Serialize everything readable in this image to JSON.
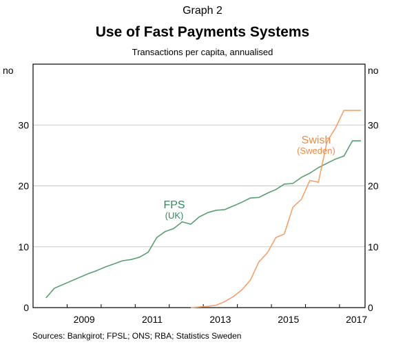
{
  "header": {
    "supertitle": "Graph 2",
    "title": "Use of Fast Payments Systems",
    "subtitle": "Transactions per capita, annualised"
  },
  "footer": {
    "source": "Sources:  Bankgirot; FPSL; ONS; RBA; Statistics Sweden"
  },
  "chart_data": {
    "type": "line",
    "title": "Use of Fast Payments Systems",
    "subtitle": "Transactions per capita, annualised",
    "ylabel_left": "no",
    "ylabel_right": "no",
    "xlim": [
      2008,
      2017.75
    ],
    "ylim": [
      0,
      40
    ],
    "yticks": [
      0,
      10,
      20,
      30
    ],
    "xticks": [
      "2009",
      "2011",
      "2013",
      "2015",
      "2017"
    ],
    "grid": "horizontal",
    "series": [
      {
        "name": "FPS",
        "sublabel": "(UK)",
        "color": "#5a9e6f",
        "label_color": "#2e8b57",
        "x": [
          2008.38,
          2008.63,
          2008.88,
          2009.13,
          2009.38,
          2009.63,
          2009.88,
          2010.13,
          2010.38,
          2010.63,
          2010.88,
          2011.13,
          2011.38,
          2011.63,
          2011.88,
          2012.13,
          2012.38,
          2012.63,
          2012.88,
          2013.13,
          2013.38,
          2013.63,
          2013.88,
          2014.13,
          2014.38,
          2014.63,
          2014.88,
          2015.13,
          2015.38,
          2015.63,
          2015.88,
          2016.13,
          2016.38,
          2016.63,
          2016.88,
          2017.13,
          2017.38,
          2017.63
        ],
        "y": [
          1.6,
          3.2,
          3.8,
          4.4,
          5.0,
          5.6,
          6.1,
          6.7,
          7.2,
          7.7,
          7.9,
          8.3,
          9.1,
          11.5,
          12.5,
          13.0,
          14.1,
          13.7,
          14.9,
          15.6,
          16.0,
          16.1,
          16.7,
          17.3,
          18.0,
          18.1,
          18.8,
          19.4,
          20.3,
          20.4,
          21.4,
          22.1,
          23.0,
          23.7,
          24.4,
          24.9,
          27.4,
          27.4
        ]
      },
      {
        "name": "Swish",
        "sublabel": "(Sweden)",
        "color": "#f4a06a",
        "label_color": "#f28a45",
        "x": [
          2012.63,
          2012.88,
          2013.13,
          2013.38,
          2013.63,
          2013.88,
          2014.13,
          2014.38,
          2014.63,
          2014.88,
          2015.13,
          2015.38,
          2015.63,
          2015.88,
          2016.13,
          2016.38,
          2016.63,
          2016.88,
          2017.13,
          2017.38,
          2017.63
        ],
        "y": [
          0.0,
          0.1,
          0.2,
          0.4,
          1.0,
          1.8,
          2.9,
          4.5,
          7.5,
          9.0,
          11.5,
          12.1,
          16.5,
          17.8,
          20.9,
          20.6,
          27.2,
          29.5,
          32.4,
          32.4,
          32.4
        ]
      }
    ]
  }
}
